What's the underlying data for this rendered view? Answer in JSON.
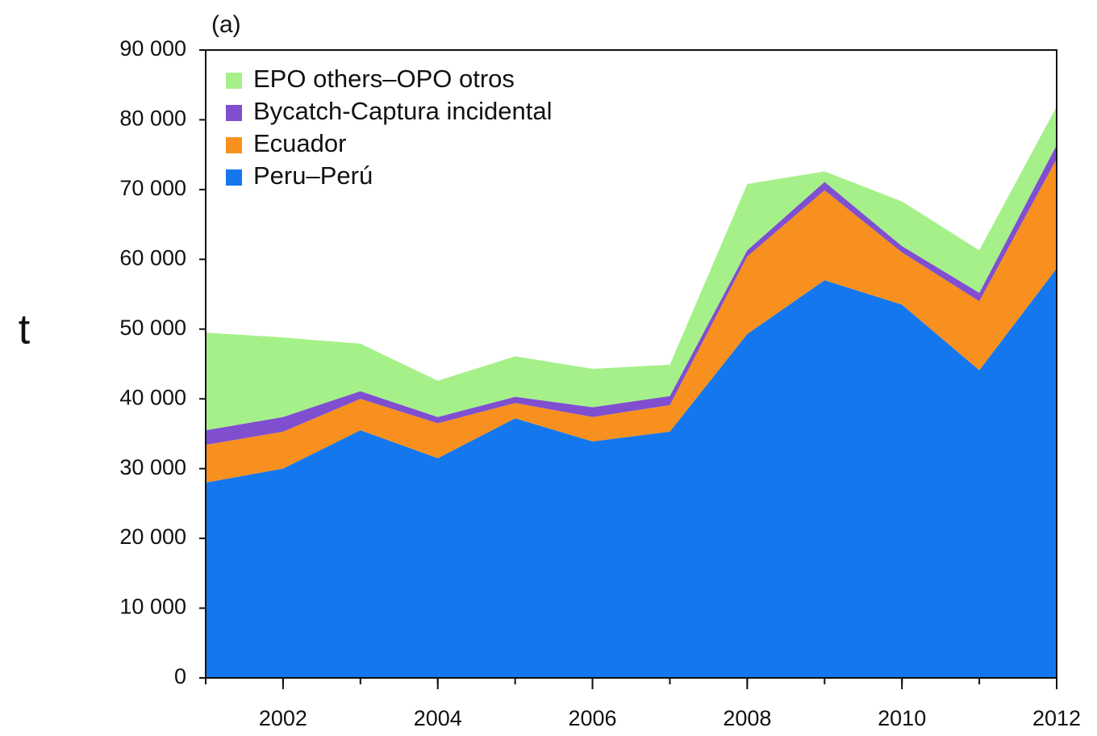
{
  "chart_data": {
    "type": "stacked-area",
    "annotation": "(a)",
    "y_label": "t",
    "x": [
      2001,
      2002,
      2003,
      2004,
      2005,
      2006,
      2007,
      2008,
      2009,
      2010,
      2011,
      2012
    ],
    "series": [
      {
        "name": "EPO others–OPO otros",
        "color": "#a6f08a",
        "values": [
          14000,
          11400,
          6800,
          5200,
          5800,
          5500,
          4500,
          9500,
          1500,
          6400,
          6100,
          5500
        ]
      },
      {
        "name": "Bycatch-Captura incidental",
        "color": "#7f4fd0",
        "values": [
          2100,
          2100,
          1100,
          900,
          900,
          1400,
          1300,
          900,
          1200,
          900,
          1200,
          2000
        ]
      },
      {
        "name": "Ecuador",
        "color": "#f7901e",
        "values": [
          5400,
          5300,
          4500,
          5000,
          2200,
          3500,
          3800,
          11100,
          12900,
          7500,
          9900,
          15700
        ]
      },
      {
        "name": "Peru–Perú",
        "color": "#1477ee",
        "values": [
          28000,
          30000,
          35500,
          31500,
          37200,
          33900,
          35300,
          49300,
          57000,
          53500,
          44100,
          58700
        ]
      }
    ],
    "xlim": [
      2001,
      2012
    ],
    "xticks": [
      2002,
      2004,
      2006,
      2008,
      2010,
      2012
    ],
    "ylim": [
      0,
      90000
    ],
    "yticks": [
      0,
      {
        "value": 10000,
        "label": "10 000"
      },
      {
        "value": 20000,
        "label": "20 000"
      },
      {
        "value": 30000,
        "label": "30 000"
      },
      {
        "value": 40000,
        "label": "40 000"
      },
      {
        "value": 50000,
        "label": "50 000"
      },
      {
        "value": 60000,
        "label": "60 000"
      },
      {
        "value": 70000,
        "label": "70 000"
      },
      {
        "value": 80000,
        "label": "80 000"
      },
      {
        "value": 90000,
        "label": "90 000"
      }
    ],
    "legend": "upper left"
  }
}
